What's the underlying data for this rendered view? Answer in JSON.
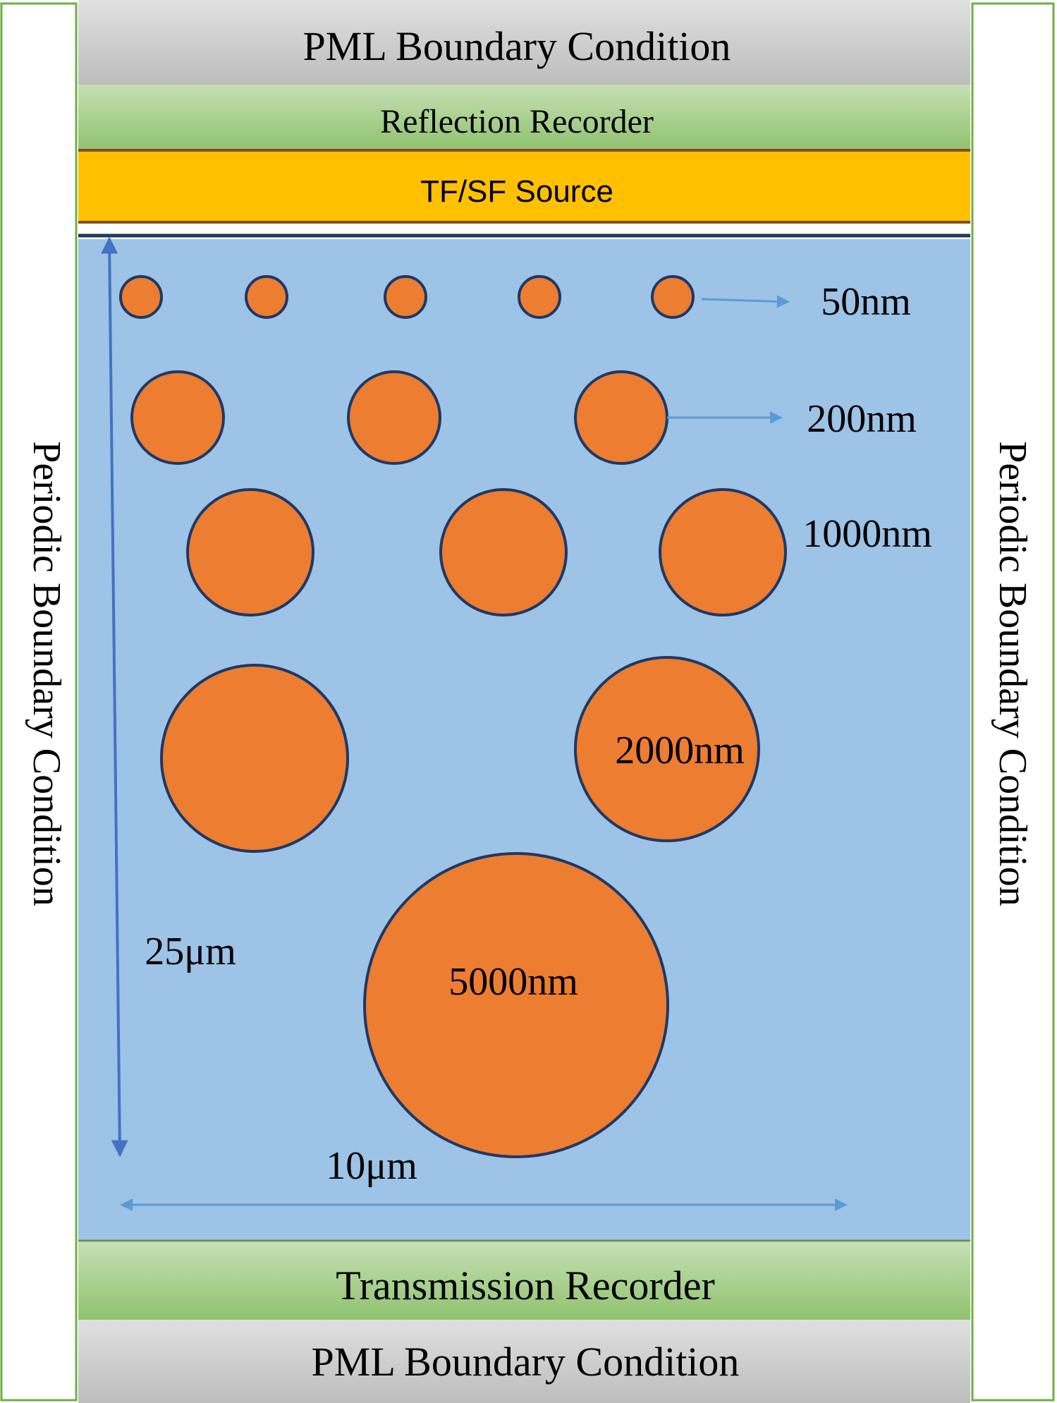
{
  "colors": {
    "pml_fill": "#c8c8c8",
    "recorder_fill": "#a9d18e",
    "source_fill": "#ffc000",
    "domain_fill": "#9dc3e6",
    "particle_fill": "#ed7d31",
    "particle_stroke": "#1f3864",
    "arrow_dark": "#4472c4",
    "arrow_light": "#5b9bd5",
    "frame_green": "#70ad47",
    "separator_dark": "#1f3864"
  },
  "bands": {
    "pml_top": "PML Boundary Condition",
    "reflection_recorder": "Reflection Recorder",
    "source": "TF/SF Source",
    "transmission_recorder": "Transmission Recorder",
    "pml_bottom": "PML Boundary Condition"
  },
  "sides": {
    "left": "Periodic Boundary Condition",
    "right": "Periodic Boundary Condition"
  },
  "particle_sizes": {
    "row1": "50nm",
    "row2": "200nm",
    "row3": "1000nm",
    "row4": "2000nm",
    "row5": "5000nm"
  },
  "dimensions": {
    "height": "25μm",
    "width": "10μm"
  }
}
